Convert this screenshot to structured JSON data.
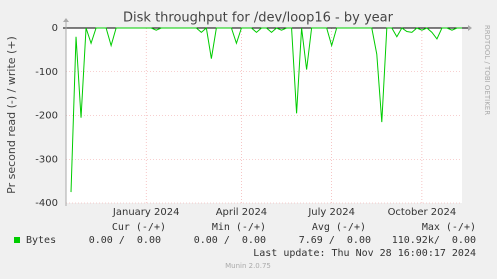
{
  "chart_data": {
    "type": "line",
    "title": "Disk throughput for /dev/loop16 - by year",
    "y_label": "Pr second read (-) / write (+)",
    "watermark": "RRDTOOL / TOBI OETIKER",
    "categories": [
      null,
      null,
      null,
      null,
      null,
      null,
      null,
      null,
      null,
      null,
      null,
      null,
      null,
      null,
      null,
      null,
      null,
      null,
      null,
      null,
      null,
      null,
      null,
      null,
      null,
      null,
      null,
      null,
      null,
      null,
      null,
      null,
      null,
      null,
      null,
      null,
      null,
      null,
      null,
      null,
      null,
      null,
      null,
      null,
      null,
      null,
      null,
      null,
      null,
      null,
      null,
      null,
      null,
      null,
      null,
      null,
      null,
      null,
      null,
      null,
      null,
      null,
      null,
      null,
      null,
      null,
      null,
      null,
      null,
      null,
      null,
      null,
      null,
      null,
      null,
      null,
      null,
      null,
      null,
      null
    ],
    "xticks": [
      {
        "value": 16,
        "label": "January 2024"
      },
      {
        "value": 35,
        "label": "April 2024"
      },
      {
        "value": 53,
        "label": "July 2024"
      },
      {
        "value": 71,
        "label": "October 2024"
      }
    ],
    "series": [
      {
        "name": "Bytes",
        "color": "#00cc00",
        "values": [
          null,
          -375,
          -20,
          -205,
          0,
          -35,
          0,
          0,
          0,
          -40,
          0,
          0,
          0,
          0,
          0,
          0,
          0,
          0,
          -5,
          0,
          0,
          0,
          0,
          0,
          0,
          0,
          0,
          -10,
          0,
          -70,
          0,
          0,
          0,
          0,
          -35,
          0,
          0,
          0,
          -10,
          0,
          0,
          -10,
          0,
          -5,
          0,
          0,
          -195,
          0,
          -95,
          0,
          0,
          0,
          0,
          -40,
          0,
          0,
          0,
          0,
          0,
          0,
          0,
          0,
          -60,
          -215,
          0,
          0,
          -20,
          0,
          -8,
          -10,
          0,
          -5,
          0,
          -10,
          -25,
          0,
          0,
          -5,
          0,
          0
        ]
      }
    ],
    "ylim": [
      -400,
      0
    ],
    "yticks": [
      -400,
      -300,
      -200,
      -100,
      0
    ],
    "grid": true,
    "stats": {
      "columns": [
        "Cur (-/+)",
        "Min (-/+)",
        "Avg (-/+)",
        "Max (-/+)"
      ],
      "cells": [
        "0.00 /  0.00",
        "0.00 /  0.00",
        "7.69 /  0.00",
        "110.92k/  0.00"
      ]
    },
    "last_update": "Last update: Thu Nov 28 16:00:17 2024",
    "version": "Munin 2.0.75"
  }
}
